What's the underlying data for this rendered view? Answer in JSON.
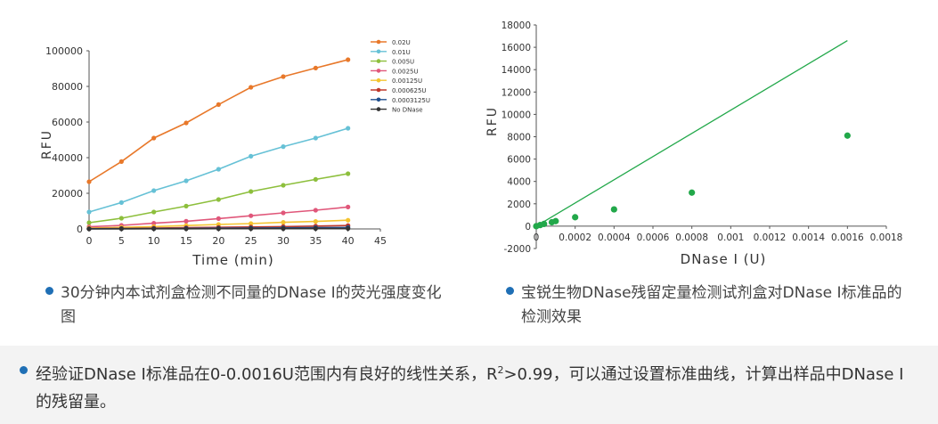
{
  "chart_data": [
    {
      "type": "line",
      "ylabel": "RFU",
      "xlabel": "Time (min)",
      "x": [
        0,
        5,
        10,
        15,
        20,
        25,
        30,
        35,
        40
      ],
      "xticks": [
        "0",
        "5",
        "10",
        "15",
        "20",
        "25",
        "30",
        "35",
        "40",
        "45"
      ],
      "yticks": [
        "0",
        "20000",
        "40000",
        "60000",
        "80000",
        "100000"
      ],
      "xlim": [
        0,
        45
      ],
      "ylim": [
        0,
        100000
      ],
      "legend_position": "top-right",
      "series": [
        {
          "name": "0.02U",
          "color": "#e8782a",
          "values": [
            26500,
            37800,
            51000,
            59500,
            69800,
            79500,
            85500,
            90300,
            95000
          ]
        },
        {
          "name": "0.01U",
          "color": "#66c1d6",
          "values": [
            9500,
            14800,
            21500,
            27000,
            33500,
            40800,
            46200,
            51000,
            56500
          ]
        },
        {
          "name": "0.005U",
          "color": "#8dbf3c",
          "values": [
            3500,
            6000,
            9500,
            12800,
            16500,
            21000,
            24500,
            27800,
            31000
          ]
        },
        {
          "name": "0.0025U",
          "color": "#e0577a",
          "values": [
            1200,
            2000,
            3200,
            4300,
            5800,
            7400,
            9000,
            10500,
            12300
          ]
        },
        {
          "name": "0.00125U",
          "color": "#f4c430",
          "values": [
            500,
            900,
            1300,
            1900,
            2500,
            3000,
            3700,
            4200,
            4900
          ]
        },
        {
          "name": "0.000625U",
          "color": "#c0392b",
          "values": [
            200,
            300,
            500,
            700,
            900,
            1100,
            1300,
            1600,
            1900
          ]
        },
        {
          "name": "0.0003125U",
          "color": "#1f4e8c",
          "values": [
            100,
            150,
            200,
            300,
            400,
            500,
            600,
            700,
            800
          ]
        },
        {
          "name": "No DNase",
          "color": "#333333",
          "values": [
            0,
            50,
            80,
            100,
            120,
            150,
            180,
            200,
            220
          ]
        }
      ]
    },
    {
      "type": "scatter",
      "ylabel": "RFU",
      "xlabel": "DNase I (U)",
      "xticks": [
        "0",
        "0.0002",
        "0.0004",
        "0.0006",
        "0.0008",
        "0.001",
        "0.0012",
        "0.0014",
        "0.0016",
        "0.0018"
      ],
      "yticks": [
        "-2000",
        "0",
        "2000",
        "4000",
        "6000",
        "8000",
        "10000",
        "12000",
        "14000",
        "16000",
        "18000"
      ],
      "xlim": [
        0,
        0.0018
      ],
      "ylim": [
        -2000,
        18000
      ],
      "color": "#22a84a",
      "points": [
        {
          "x": 0.0,
          "y": 0
        },
        {
          "x": 2e-05,
          "y": 100
        },
        {
          "x": 4e-05,
          "y": 200
        },
        {
          "x": 8e-05,
          "y": 350
        },
        {
          "x": 0.0001,
          "y": 450
        },
        {
          "x": 0.0002,
          "y": 800
        },
        {
          "x": 0.0004,
          "y": 1500
        },
        {
          "x": 0.0008,
          "y": 3000
        },
        {
          "x": 0.0016,
          "y": 8100
        }
      ],
      "trendline": [
        {
          "x": 0.0,
          "y": 0
        },
        {
          "x": 0.0016,
          "y": 16600
        }
      ]
    }
  ],
  "captions": {
    "left": "30分钟内本试剂盒检测不同量的DNase I的荧光强度变化图",
    "right": "宝锐生物DNase残留定量检测试剂盒对DNase I标准品的检测效果"
  },
  "bottom": {
    "text_before": "经验证DNase I标准品在0-0.0016U范围内有良好的线性关系，R",
    "sup": "2",
    "text_after": ">0.99，可以通过设置标准曲线，计算出样品中DNase I的残留量。"
  }
}
